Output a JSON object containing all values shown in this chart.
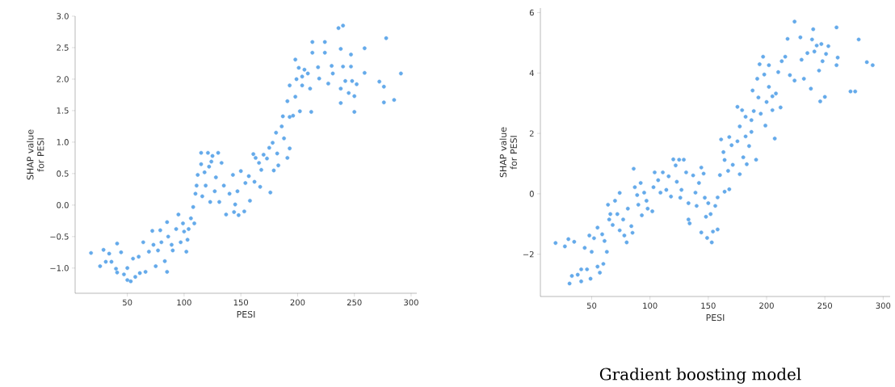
{
  "chart_data": [
    {
      "type": "scatter",
      "xlabel": "PESI",
      "ylabel": "SHAP value for PESI",
      "grid": false,
      "xlim": [
        4,
        305
      ],
      "ylim": [
        -1.4,
        3.0
      ],
      "xticks": [
        50,
        100,
        150,
        200,
        250,
        300
      ],
      "yticks": [
        {
          "value": -1.0,
          "label": "−1.0"
        },
        {
          "value": -0.5,
          "label": "−0.5"
        },
        {
          "value": 0.0,
          "label": "0.0"
        },
        {
          "value": 0.5,
          "label": "0.5"
        },
        {
          "value": 1.0,
          "label": "1.0"
        },
        {
          "value": 1.5,
          "label": "1.5"
        },
        {
          "value": 2.0,
          "label": "2.0"
        },
        {
          "value": 2.5,
          "label": "2.5"
        },
        {
          "value": 3.0,
          "label": "3.0"
        }
      ],
      "series": [
        {
          "color": "#64aaea",
          "x": [
            18,
            26,
            29,
            31,
            34,
            36,
            41,
            40,
            41,
            44.5,
            47,
            50,
            53,
            50,
            55,
            57,
            60,
            61,
            64,
            66,
            69,
            72,
            73,
            75,
            77,
            79,
            80,
            83,
            85,
            85,
            86,
            89,
            90,
            93,
            95,
            97,
            99,
            100,
            102,
            103,
            104,
            106,
            108,
            109,
            110,
            111,
            112,
            115,
            115,
            116,
            118,
            119,
            121,
            122,
            123,
            124,
            125,
            127,
            128,
            130,
            131,
            133,
            135,
            137,
            140,
            143,
            144,
            145,
            147,
            148,
            150,
            153,
            154,
            157,
            158,
            161,
            162,
            163,
            166,
            167,
            168,
            170,
            173,
            175,
            176,
            178,
            179,
            181,
            182,
            183,
            186,
            187,
            188,
            191,
            191,
            193,
            193,
            196,
            193,
            198,
            198,
            199,
            201,
            202,
            204,
            204,
            206,
            209,
            211,
            212,
            213,
            213,
            218,
            219,
            224,
            224,
            227,
            230,
            231,
            236,
            238,
            240,
            240,
            238,
            238,
            242,
            245,
            247,
            247,
            248,
            250,
            250,
            252,
            259,
            259,
            272,
            276,
            276,
            278,
            285,
            291
          ],
          "values": [
            -0.76,
            -0.97,
            -0.71,
            -0.9,
            -0.77,
            -0.9,
            -0.61,
            -1.01,
            -1.07,
            -0.75,
            -1.1,
            -1.19,
            -1.21,
            -1.0,
            -0.85,
            -1.14,
            -0.82,
            -1.08,
            -0.59,
            -1.06,
            -0.74,
            -0.41,
            -0.63,
            -0.97,
            -0.72,
            -0.4,
            -0.59,
            -0.89,
            -1.06,
            -0.27,
            -0.5,
            -0.63,
            -0.72,
            -0.38,
            -0.15,
            -0.59,
            -0.29,
            -0.42,
            -0.74,
            -0.55,
            -0.38,
            -0.21,
            -0.03,
            -0.29,
            0.18,
            0.31,
            0.48,
            0.65,
            0.83,
            0.14,
            0.52,
            0.31,
            0.83,
            0.61,
            0.05,
            0.69,
            0.78,
            0.22,
            0.44,
            0.83,
            0.05,
            0.67,
            0.31,
            -0.15,
            0.18,
            0.48,
            -0.11,
            0.01,
            0.22,
            -0.16,
            0.54,
            -0.1,
            0.35,
            0.46,
            0.07,
            0.81,
            0.37,
            0.75,
            0.67,
            0.29,
            0.56,
            0.8,
            0.74,
            0.91,
            0.2,
            0.99,
            0.55,
            1.15,
            0.82,
            0.63,
            1.25,
            1.41,
            1.06,
            0.75,
            1.65,
            1.4,
            0.9,
            1.42,
            1.9,
            2.31,
            1.72,
            2.0,
            2.18,
            1.49,
            1.9,
            2.04,
            2.15,
            2.09,
            1.85,
            1.48,
            2.59,
            2.42,
            2.19,
            2.01,
            2.59,
            2.42,
            1.93,
            2.21,
            2.09,
            2.81,
            2.48,
            2.85,
            2.2,
            1.85,
            1.62,
            1.97,
            1.78,
            2.39,
            2.2,
            1.97,
            1.73,
            1.48,
            1.92,
            2.49,
            2.1,
            1.96,
            1.88,
            1.63,
            2.65,
            1.67,
            2.09
          ]
        }
      ]
    },
    {
      "type": "scatter",
      "xlabel": "PESI",
      "ylabel": "SHAP value for PESI",
      "grid": false,
      "annotations": [
        "Gradient boosting model"
      ],
      "xlim": [
        6,
        306
      ],
      "ylim": [
        -3.4,
        6.15
      ],
      "xticks": [
        50,
        100,
        150,
        200,
        250,
        300
      ],
      "yticks": [
        {
          "value": -2,
          "label": "−2"
        },
        0,
        2,
        4,
        6
      ],
      "series": [
        {
          "color": "#64aaea",
          "x": [
            19,
            27,
            30,
            31,
            33,
            35,
            38,
            41,
            41,
            44,
            46,
            48,
            49,
            50,
            52,
            55,
            55,
            57,
            59,
            60,
            61,
            63,
            64,
            65,
            66,
            68,
            70,
            72,
            74,
            74,
            77,
            78,
            80,
            81,
            84,
            85,
            86,
            87,
            89,
            90,
            92,
            93,
            95,
            97,
            98,
            102,
            103,
            104,
            107,
            109,
            111,
            114,
            116,
            118,
            120,
            122,
            123,
            125,
            126,
            127,
            129,
            131,
            133,
            133,
            134,
            137,
            139,
            140,
            142,
            144,
            144,
            146,
            147,
            148,
            149,
            150,
            152,
            153,
            154,
            156,
            158,
            158,
            160,
            161,
            163,
            164,
            164,
            167,
            168,
            168,
            170,
            171,
            175,
            175,
            177,
            177,
            179,
            180,
            182,
            182,
            183,
            185,
            187,
            187,
            188,
            189,
            191,
            192,
            193,
            194,
            195,
            197,
            198,
            199,
            200,
            202,
            202,
            205,
            205,
            207,
            208,
            210,
            212,
            213,
            216,
            218,
            220,
            224,
            224,
            229,
            230,
            232,
            235,
            238,
            239,
            240,
            241,
            243,
            245,
            246,
            247,
            248,
            250,
            251,
            253,
            260,
            260,
            261,
            272,
            276,
            279,
            286,
            291
          ],
          "values": [
            -1.63,
            -1.74,
            -1.5,
            -2.97,
            -2.72,
            -1.59,
            -2.68,
            -2.9,
            -2.5,
            -1.79,
            -2.5,
            -1.38,
            -2.81,
            -1.92,
            -1.47,
            -2.41,
            -1.12,
            -2.61,
            -1.34,
            -2.32,
            -1.56,
            -1.92,
            -0.36,
            -0.85,
            -0.67,
            -1.03,
            -0.23,
            -0.67,
            0.03,
            -1.21,
            -0.85,
            -1.38,
            -1.61,
            -0.49,
            -1.07,
            -1.29,
            0.83,
            0.22,
            -0.04,
            -0.36,
            0.36,
            -0.71,
            0.04,
            -0.23,
            -0.49,
            -0.58,
            0.22,
            0.71,
            0.45,
            0.04,
            0.71,
            0.13,
            0.58,
            -0.09,
            1.14,
            0.94,
            0.4,
            1.13,
            -0.13,
            0.13,
            1.13,
            0.71,
            -0.31,
            -0.85,
            -0.98,
            0.61,
            0.04,
            -0.4,
            0.36,
            0.87,
            -1.28,
            0.67,
            -0.13,
            -0.76,
            -1.46,
            -0.31,
            -0.67,
            -1.61,
            -1.25,
            -0.4,
            -1.18,
            -0.12,
            0.62,
            1.8,
            1.38,
            0.07,
            1.12,
            0.76,
            0.15,
            1.88,
            1.61,
            0.96,
            2.88,
            1.74,
            0.65,
            2.23,
            2.77,
            1.21,
            2.55,
            1.9,
            0.98,
            1.58,
            2.44,
            2.05,
            3.42,
            2.74,
            1.13,
            3.81,
            3.19,
            4.29,
            2.65,
            4.54,
            3.95,
            2.26,
            3.04,
            4.26,
            3.54,
            2.77,
            3.23,
            1.83,
            3.32,
            4.03,
            2.86,
            4.39,
            4.54,
            5.13,
            3.93,
            3.75,
            5.7,
            5.18,
            4.44,
            3.81,
            4.66,
            3.48,
            5.11,
            5.45,
            4.71,
            4.91,
            4.08,
            3.06,
            4.96,
            4.39,
            3.21,
            4.63,
            4.89,
            5.51,
            4.26,
            4.51,
            3.39,
            3.39,
            5.11,
            4.36,
            4.26
          ]
        }
      ]
    }
  ]
}
